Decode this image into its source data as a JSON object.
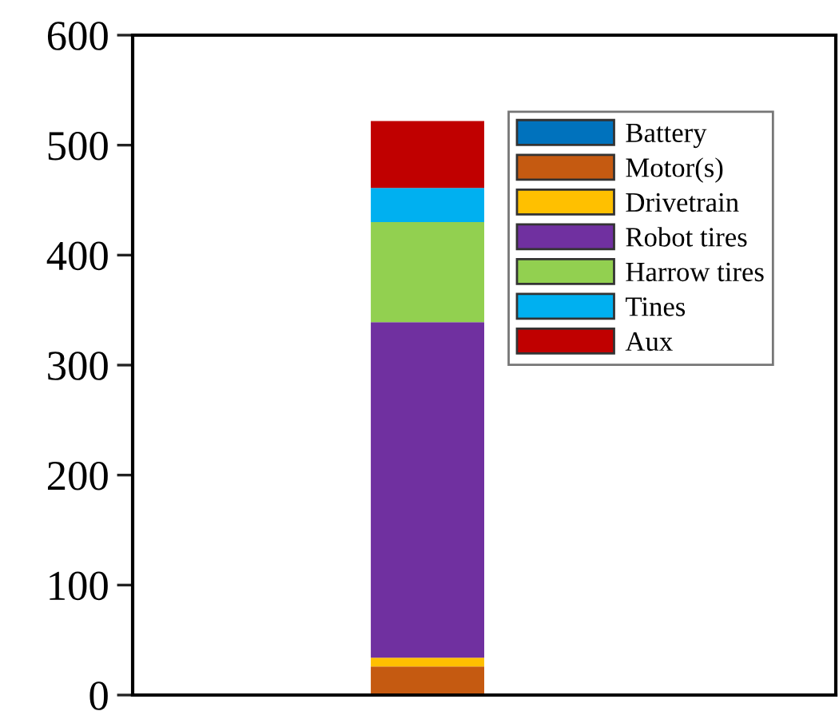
{
  "chart_data": {
    "type": "bar",
    "stacked": true,
    "categories": [
      null
    ],
    "series": [
      {
        "name": "Battery",
        "color": "#0072bd",
        "values": [
          0
        ]
      },
      {
        "name": "Motor(s)",
        "color": "#c55a11",
        "values": [
          26
        ]
      },
      {
        "name": "Drivetrain",
        "color": "#ffc000",
        "values": [
          8
        ]
      },
      {
        "name": "Robot tires",
        "color": "#7030a0",
        "values": [
          305
        ]
      },
      {
        "name": "Harrow tires",
        "color": "#92d050",
        "values": [
          91
        ]
      },
      {
        "name": "Tines",
        "color": "#00b0f0",
        "values": [
          31
        ]
      },
      {
        "name": "Aux",
        "color": "#c00000",
        "values": [
          61
        ]
      }
    ],
    "ylim": [
      0,
      600
    ],
    "yticks": [
      0,
      100,
      200,
      300,
      400,
      500,
      600
    ],
    "grid": false,
    "legend": "top right",
    "tick_labels": "y"
  }
}
